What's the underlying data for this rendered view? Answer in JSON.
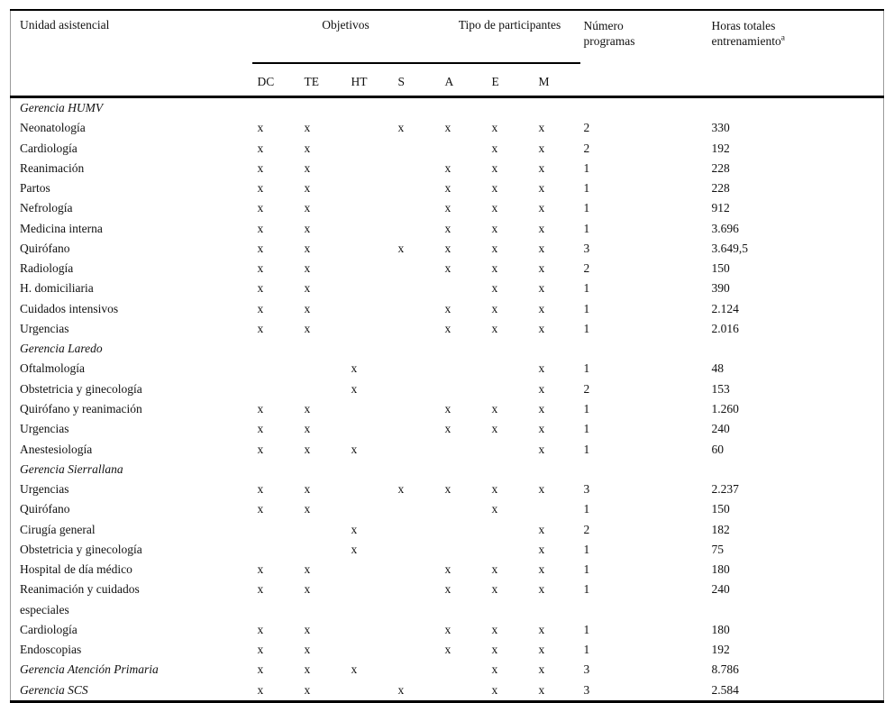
{
  "table": {
    "headers": {
      "unit": "Unidad asistencial",
      "objetivos": "Objetivos",
      "participantes": "Tipo de participantes",
      "numero_line1": "Número",
      "numero_line2": "programas",
      "horas_line1": "Horas totales",
      "horas_line2": "entrenamiento",
      "horas_sup": "a",
      "mark_cols": [
        "DC",
        "TE",
        "HT",
        "S",
        "A",
        "E",
        "M"
      ]
    },
    "colors": {
      "rule": "#000000",
      "side_border": "#9a9a9a",
      "text": "#111111",
      "background": "#ffffff"
    },
    "rows": [
      {
        "type": "group",
        "label": "Gerencia HUMV"
      },
      {
        "type": "data",
        "label": "Neonatología",
        "marks": [
          "x",
          "x",
          "",
          "x",
          "x",
          "x",
          "x"
        ],
        "num": "2",
        "hours": "330"
      },
      {
        "type": "data",
        "label": "Cardiología",
        "marks": [
          "x",
          "x",
          "",
          "",
          "",
          "x",
          "x"
        ],
        "num": "2",
        "hours": "192"
      },
      {
        "type": "data",
        "label": "Reanimación",
        "marks": [
          "x",
          "x",
          "",
          "",
          "x",
          "x",
          "x"
        ],
        "num": "1",
        "hours": "228"
      },
      {
        "type": "data",
        "label": "Partos",
        "marks": [
          "x",
          "x",
          "",
          "",
          "x",
          "x",
          "x"
        ],
        "num": "1",
        "hours": "228"
      },
      {
        "type": "data",
        "label": "Nefrología",
        "marks": [
          "x",
          "x",
          "",
          "",
          "x",
          "x",
          "x"
        ],
        "num": "1",
        "hours": "912"
      },
      {
        "type": "data",
        "label": "Medicina interna",
        "marks": [
          "x",
          "x",
          "",
          "",
          "x",
          "x",
          "x"
        ],
        "num": "1",
        "hours": "3.696"
      },
      {
        "type": "data",
        "label": "Quirófano",
        "marks": [
          "x",
          "x",
          "",
          "x",
          "x",
          "x",
          "x"
        ],
        "num": "3",
        "hours": "3.649,5"
      },
      {
        "type": "data",
        "label": "Radiología",
        "marks": [
          "x",
          "x",
          "",
          "",
          "x",
          "x",
          "x"
        ],
        "num": "2",
        "hours": "150"
      },
      {
        "type": "data",
        "label": "H. domiciliaria",
        "marks": [
          "x",
          "x",
          "",
          "",
          "",
          "x",
          "x"
        ],
        "num": "1",
        "hours": "390"
      },
      {
        "type": "data",
        "label": "Cuidados intensivos",
        "marks": [
          "x",
          "x",
          "",
          "",
          "x",
          "x",
          "x"
        ],
        "num": "1",
        "hours": "2.124"
      },
      {
        "type": "data",
        "label": "Urgencias",
        "marks": [
          "x",
          "x",
          "",
          "",
          "x",
          "x",
          "x"
        ],
        "num": "1",
        "hours": "2.016"
      },
      {
        "type": "group",
        "label": "Gerencia Laredo"
      },
      {
        "type": "data",
        "label": "Oftalmología",
        "marks": [
          "",
          "",
          "x",
          "",
          "",
          "",
          "x"
        ],
        "num": "1",
        "hours": "48"
      },
      {
        "type": "data",
        "label": "Obstetricia y ginecología",
        "marks": [
          "",
          "",
          "x",
          "",
          "",
          "",
          "x"
        ],
        "num": "2",
        "hours": "153"
      },
      {
        "type": "data",
        "label": "Quirófano y reanimación",
        "marks": [
          "x",
          "x",
          "",
          "",
          "x",
          "x",
          "x"
        ],
        "num": "1",
        "hours": "1.260"
      },
      {
        "type": "data",
        "label": "Urgencias",
        "marks": [
          "x",
          "x",
          "",
          "",
          "x",
          "x",
          "x"
        ],
        "num": "1",
        "hours": "240"
      },
      {
        "type": "data",
        "label": "Anestesiología",
        "marks": [
          "x",
          "x",
          "x",
          "",
          "",
          "",
          "x"
        ],
        "num": "1",
        "hours": "60"
      },
      {
        "type": "group",
        "label": "Gerencia Sierrallana"
      },
      {
        "type": "data",
        "label": "Urgencias",
        "marks": [
          "x",
          "x",
          "",
          "x",
          "x",
          "x",
          "x"
        ],
        "num": "3",
        "hours": "2.237"
      },
      {
        "type": "data",
        "label": "Quirófano",
        "marks": [
          "x",
          "x",
          "",
          "",
          "",
          "x",
          ""
        ],
        "num": "1",
        "hours": "150"
      },
      {
        "type": "data",
        "label": "Cirugía general",
        "marks": [
          "",
          "",
          "x",
          "",
          "",
          "",
          "x"
        ],
        "num": "2",
        "hours": "182"
      },
      {
        "type": "data",
        "label": "Obstetricia y ginecología",
        "marks": [
          "",
          "",
          "x",
          "",
          "",
          "",
          "x"
        ],
        "num": "1",
        "hours": "75"
      },
      {
        "type": "data",
        "label": "Hospital de día médico",
        "marks": [
          "x",
          "x",
          "",
          "",
          "x",
          "x",
          "x"
        ],
        "num": "1",
        "hours": "180"
      },
      {
        "type": "data",
        "label": "Reanimación y cuidados\nespeciales",
        "marks": [
          "x",
          "x",
          "",
          "",
          "x",
          "x",
          "x"
        ],
        "num": "1",
        "hours": "240"
      },
      {
        "type": "data",
        "label": "Cardiología",
        "marks": [
          "x",
          "x",
          "",
          "",
          "x",
          "x",
          "x"
        ],
        "num": "1",
        "hours": "180"
      },
      {
        "type": "data",
        "label": "Endoscopias",
        "marks": [
          "x",
          "x",
          "",
          "",
          "x",
          "x",
          "x"
        ],
        "num": "1",
        "hours": "192"
      },
      {
        "type": "group-data",
        "label": "Gerencia Atención Primaria",
        "marks": [
          "x",
          "x",
          "x",
          "",
          "",
          "x",
          "x"
        ],
        "num": "3",
        "hours": "8.786"
      },
      {
        "type": "group-data",
        "label": "Gerencia SCS",
        "marks": [
          "x",
          "x",
          "",
          "x",
          "",
          "x",
          "x"
        ],
        "num": "3",
        "hours": "2.584"
      }
    ]
  }
}
